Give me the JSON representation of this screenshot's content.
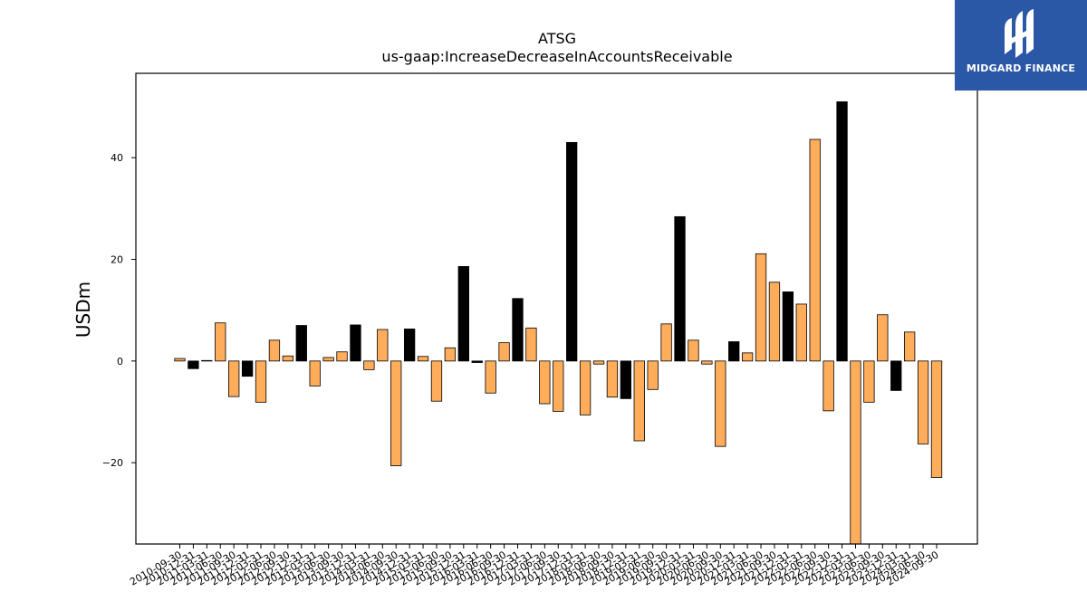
{
  "chart_data": {
    "type": "bar",
    "title": "ATSG",
    "subtitle": "us-gaap:IncreaseDecreaseInAccountsReceivable",
    "xlabel": "",
    "ylabel": "USDm",
    "ylim": [
      -36,
      56.6
    ],
    "yticks": [
      -20,
      0,
      20,
      40
    ],
    "grid": false,
    "colors": {
      "positive_negative_fill": "#ffad5a",
      "alt_fill": "#000000",
      "edge": "#000000"
    },
    "categories": [
      "2010-09-30",
      "2010-12-31",
      "2011-03-31",
      "2011-06-30",
      "2011-09-30",
      "2011-12-31",
      "2012-03-31",
      "2012-06-30",
      "2012-09-30",
      "2012-12-31",
      "2013-03-31",
      "2013-06-30",
      "2013-09-30",
      "2013-12-31",
      "2014-03-31",
      "2014-06-30",
      "2014-09-30",
      "2014-12-31",
      "2015-03-31",
      "2015-06-30",
      "2015-09-30",
      "2015-12-31",
      "2016-03-31",
      "2016-06-30",
      "2016-09-30",
      "2016-12-31",
      "2017-03-31",
      "2017-06-30",
      "2017-09-30",
      "2017-12-31",
      "2018-03-31",
      "2018-06-30",
      "2018-09-30",
      "2018-12-31",
      "2019-03-31",
      "2019-06-30",
      "2019-09-30",
      "2019-12-31",
      "2020-03-31",
      "2020-06-30",
      "2020-09-30",
      "2020-12-31",
      "2021-03-31",
      "2021-06-30",
      "2021-09-30",
      "2021-12-31",
      "2022-03-31",
      "2022-06-30",
      "2022-09-30",
      "2022-12-31",
      "2023-03-31",
      "2023-06-30",
      "2023-09-30",
      "2023-12-31",
      "2024-03-31",
      "2024-06-30",
      "2024-09-30"
    ],
    "values": [
      0.5,
      -1.5,
      0.1,
      7.5,
      -7,
      -3,
      -8.1,
      4.1,
      1,
      7,
      -4.9,
      0.7,
      1.8,
      7.1,
      -1.7,
      6.2,
      -20.6,
      6.3,
      0.9,
      -7.9,
      2.6,
      18.6,
      -0.3,
      -6.3,
      3.6,
      12.3,
      6.5,
      -8.4,
      -9.9,
      43,
      -10.6,
      -0.6,
      -7.1,
      -7.4,
      -15.7,
      -5.6,
      7.3,
      28.4,
      4.1,
      -0.6,
      -16.8,
      3.8,
      1.6,
      21.1,
      15.5,
      13.6,
      11.2,
      43.6,
      -9.8,
      51,
      -36,
      -8.1,
      9.1,
      -5.8,
      5.7,
      -16.3,
      -22.9
    ],
    "bar_color": [
      "orange",
      "black",
      "orange",
      "orange",
      "orange",
      "black",
      "orange",
      "orange",
      "orange",
      "black",
      "orange",
      "orange",
      "orange",
      "black",
      "orange",
      "orange",
      "orange",
      "black",
      "orange",
      "orange",
      "orange",
      "black",
      "black",
      "orange",
      "orange",
      "black",
      "orange",
      "orange",
      "orange",
      "black",
      "orange",
      "orange",
      "orange",
      "black",
      "orange",
      "orange",
      "orange",
      "black",
      "orange",
      "orange",
      "orange",
      "black",
      "orange",
      "orange",
      "orange",
      "black",
      "orange",
      "orange",
      "orange",
      "black",
      "orange",
      "orange",
      "orange",
      "black",
      "orange",
      "orange",
      "orange"
    ]
  },
  "logo": {
    "text": "MIDGARD FINANCE"
  }
}
